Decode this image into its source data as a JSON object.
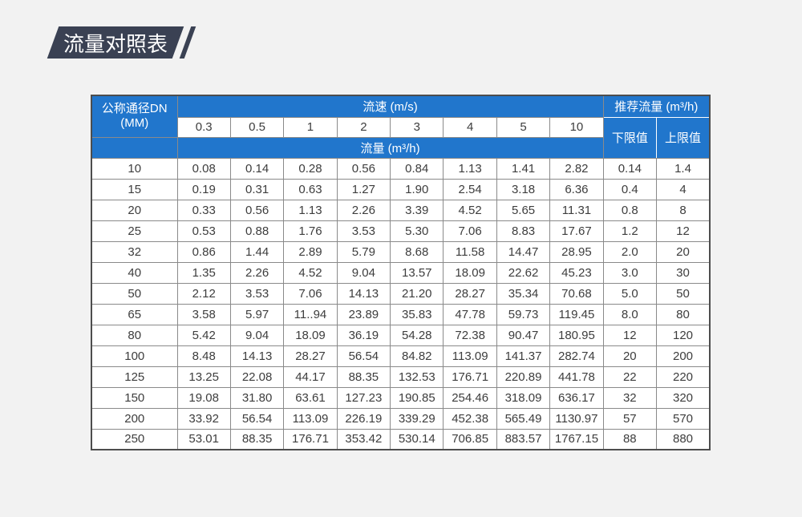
{
  "title_badge": {
    "text": "流量对照表",
    "background": "#3a4153"
  },
  "table": {
    "header": {
      "dn_label_line1": "公称通径DN",
      "dn_label_line2": "(MM)",
      "velocity_label": "流速 (m/s)",
      "velocity_values": [
        "0.3",
        "0.5",
        "1",
        "2",
        "3",
        "4",
        "5",
        "10"
      ],
      "flow_label": "流量 (m³/h)",
      "recommended_label": "推荐流量 (m³/h)",
      "lower_limit_label": "下限值",
      "upper_limit_label": "上限值"
    },
    "rows": [
      {
        "dn": "10",
        "flows": [
          "0.08",
          "0.14",
          "0.28",
          "0.56",
          "0.84",
          "1.13",
          "1.41",
          "2.82"
        ],
        "lower": "0.14",
        "upper": "1.4"
      },
      {
        "dn": "15",
        "flows": [
          "0.19",
          "0.31",
          "0.63",
          "1.27",
          "1.90",
          "2.54",
          "3.18",
          "6.36"
        ],
        "lower": "0.4",
        "upper": "4"
      },
      {
        "dn": "20",
        "flows": [
          "0.33",
          "0.56",
          "1.13",
          "2.26",
          "3.39",
          "4.52",
          "5.65",
          "11.31"
        ],
        "lower": "0.8",
        "upper": "8"
      },
      {
        "dn": "25",
        "flows": [
          "0.53",
          "0.88",
          "1.76",
          "3.53",
          "5.30",
          "7.06",
          "8.83",
          "17.67"
        ],
        "lower": "1.2",
        "upper": "12"
      },
      {
        "dn": "32",
        "flows": [
          "0.86",
          "1.44",
          "2.89",
          "5.79",
          "8.68",
          "11.58",
          "14.47",
          "28.95"
        ],
        "lower": "2.0",
        "upper": "20"
      },
      {
        "dn": "40",
        "flows": [
          "1.35",
          "2.26",
          "4.52",
          "9.04",
          "13.57",
          "18.09",
          "22.62",
          "45.23"
        ],
        "lower": "3.0",
        "upper": "30"
      },
      {
        "dn": "50",
        "flows": [
          "2.12",
          "3.53",
          "7.06",
          "14.13",
          "21.20",
          "28.27",
          "35.34",
          "70.68"
        ],
        "lower": "5.0",
        "upper": "50"
      },
      {
        "dn": "65",
        "flows": [
          "3.58",
          "5.97",
          "11..94",
          "23.89",
          "35.83",
          "47.78",
          "59.73",
          "119.45"
        ],
        "lower": "8.0",
        "upper": "80"
      },
      {
        "dn": "80",
        "flows": [
          "5.42",
          "9.04",
          "18.09",
          "36.19",
          "54.28",
          "72.38",
          "90.47",
          "180.95"
        ],
        "lower": "12",
        "upper": "120"
      },
      {
        "dn": "100",
        "flows": [
          "8.48",
          "14.13",
          "28.27",
          "56.54",
          "84.82",
          "113.09",
          "141.37",
          "282.74"
        ],
        "lower": "20",
        "upper": "200"
      },
      {
        "dn": "125",
        "flows": [
          "13.25",
          "22.08",
          "44.17",
          "88.35",
          "132.53",
          "176.71",
          "220.89",
          "441.78"
        ],
        "lower": "22",
        "upper": "220"
      },
      {
        "dn": "150",
        "flows": [
          "19.08",
          "31.80",
          "63.61",
          "127.23",
          "190.85",
          "254.46",
          "318.09",
          "636.17"
        ],
        "lower": "32",
        "upper": "320"
      },
      {
        "dn": "200",
        "flows": [
          "33.92",
          "56.54",
          "113.09",
          "226.19",
          "339.29",
          "452.38",
          "565.49",
          "1130.97"
        ],
        "lower": "57",
        "upper": "570"
      },
      {
        "dn": "250",
        "flows": [
          "53.01",
          "88.35",
          "176.71",
          "353.42",
          "530.14",
          "706.85",
          "883.57",
          "1767.15"
        ],
        "lower": "88",
        "upper": "880"
      }
    ],
    "colors": {
      "header_blue": "#2176cc",
      "border": "#8a8a8a",
      "outer_border": "#4d4d4d",
      "text": "#3d3d3d",
      "page_background": "#f2f2f2"
    }
  }
}
